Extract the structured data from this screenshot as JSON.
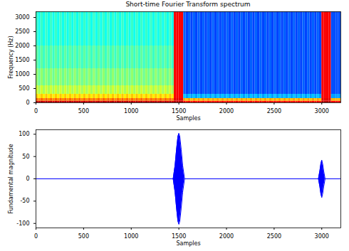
{
  "chart_data": [
    {
      "type": "heatmap",
      "title": "Short-time Fourier Transform spectrum",
      "x_label": "Samples",
      "y_label": "Frequency (Hz)",
      "xlim": [
        0,
        3200
      ],
      "ylim": [
        0,
        3200
      ],
      "xticks": [
        0,
        500,
        1000,
        1500,
        2000,
        2500,
        3000
      ],
      "yticks": [
        0,
        500,
        1000,
        1500,
        2000,
        2500,
        3000
      ],
      "grid": false,
      "color": "jet",
      "zlim": [
        0,
        100
      ],
      "x_edges": [
        0,
        25,
        50,
        75,
        100,
        125,
        150,
        175,
        200,
        225,
        250,
        275,
        300,
        325,
        350,
        375,
        400,
        425,
        450,
        475,
        500,
        525,
        550,
        575,
        600,
        625,
        650,
        675,
        700,
        725,
        750,
        775,
        800,
        825,
        850,
        875,
        900,
        925,
        950,
        975,
        1000,
        1025,
        1050,
        1075,
        1100,
        1125,
        1150,
        1175,
        1200,
        1225,
        1250,
        1275,
        1300,
        1325,
        1350,
        1375,
        1400,
        1425,
        1450,
        1475,
        1500,
        1525,
        1550,
        1575,
        1600,
        1625,
        1650,
        1675,
        1700,
        1725,
        1750,
        1775,
        1800,
        1825,
        1850,
        1875,
        1900,
        1925,
        1950,
        1975,
        2000,
        2025,
        2050,
        2075,
        2100,
        2125,
        2150,
        2175,
        2200,
        2225,
        2250,
        2275,
        2300,
        2325,
        2350,
        2375,
        2400,
        2425,
        2450,
        2475,
        2500,
        2525,
        2550,
        2575,
        2600,
        2625,
        2650,
        2675,
        2700,
        2725,
        2750,
        2775,
        2800,
        2825,
        2850,
        2875,
        2900,
        2925,
        2950,
        2975,
        3000,
        3025,
        3050,
        3075,
        3100,
        3125,
        3150,
        3175,
        3200
      ],
      "y_edges": [
        0,
        60,
        150,
        300,
        600,
        1200,
        2000,
        3200
      ],
      "cells": [
        [
          95,
          92,
          95,
          92,
          95,
          92,
          95,
          92,
          95,
          92,
          95,
          92,
          95,
          92,
          95,
          92,
          95,
          92,
          95,
          92,
          95,
          92,
          95,
          92,
          95,
          92,
          95,
          92,
          95,
          92,
          95,
          92,
          95,
          92,
          95,
          92,
          95,
          92,
          95,
          92,
          95,
          92,
          95,
          92,
          95,
          92,
          95,
          92,
          95,
          92,
          95,
          92,
          95,
          92,
          95,
          92,
          95,
          92,
          95,
          95,
          95,
          95,
          88,
          85,
          88,
          85,
          88,
          85,
          88,
          85,
          88,
          85,
          88,
          85,
          88,
          85,
          88,
          85,
          88,
          85,
          88,
          85,
          88,
          85,
          88,
          85,
          88,
          85,
          88,
          85,
          88,
          85,
          88,
          85,
          88,
          85,
          88,
          85,
          88,
          85,
          88,
          85,
          88,
          85,
          88,
          85,
          88,
          85,
          88,
          85,
          88,
          85,
          88,
          85,
          88,
          85,
          88,
          85,
          88,
          85,
          95,
          95,
          95,
          95,
          88,
          88,
          88,
          88
        ],
        [
          78,
          74,
          78,
          74,
          78,
          74,
          78,
          74,
          78,
          74,
          78,
          74,
          78,
          74,
          78,
          74,
          78,
          74,
          78,
          74,
          78,
          74,
          78,
          74,
          78,
          74,
          78,
          74,
          78,
          74,
          78,
          74,
          78,
          74,
          78,
          74,
          78,
          74,
          78,
          74,
          78,
          74,
          78,
          74,
          78,
          74,
          78,
          74,
          78,
          74,
          78,
          74,
          78,
          74,
          78,
          74,
          78,
          74,
          90,
          90,
          90,
          90,
          72,
          68,
          72,
          68,
          72,
          68,
          72,
          68,
          72,
          68,
          72,
          68,
          72,
          68,
          72,
          68,
          72,
          68,
          72,
          68,
          72,
          68,
          72,
          68,
          72,
          68,
          72,
          68,
          72,
          68,
          72,
          68,
          72,
          68,
          72,
          68,
          72,
          68,
          72,
          68,
          72,
          68,
          72,
          68,
          72,
          68,
          72,
          68,
          72,
          68,
          72,
          68,
          72,
          68,
          72,
          68,
          72,
          68,
          90,
          90,
          90,
          90,
          70,
          70,
          70,
          70
        ],
        [
          68,
          64,
          68,
          64,
          68,
          64,
          68,
          64,
          68,
          64,
          68,
          64,
          68,
          64,
          68,
          64,
          68,
          64,
          68,
          64,
          68,
          64,
          68,
          64,
          68,
          64,
          68,
          64,
          68,
          64,
          68,
          64,
          68,
          64,
          68,
          64,
          68,
          64,
          68,
          64,
          68,
          64,
          68,
          64,
          68,
          64,
          68,
          64,
          68,
          64,
          68,
          64,
          68,
          64,
          68,
          64,
          68,
          64,
          88,
          88,
          88,
          88,
          32,
          28,
          32,
          28,
          32,
          28,
          32,
          28,
          32,
          28,
          32,
          28,
          32,
          28,
          32,
          28,
          32,
          28,
          32,
          28,
          32,
          28,
          32,
          28,
          32,
          28,
          32,
          28,
          32,
          28,
          32,
          28,
          32,
          28,
          32,
          28,
          32,
          28,
          32,
          28,
          32,
          28,
          32,
          28,
          32,
          28,
          32,
          28,
          32,
          28,
          32,
          28,
          32,
          28,
          32,
          28,
          32,
          28,
          88,
          88,
          88,
          88,
          28,
          28,
          28,
          28
        ],
        [
          58,
          54,
          58,
          54,
          58,
          54,
          58,
          54,
          58,
          54,
          58,
          54,
          58,
          54,
          58,
          54,
          58,
          54,
          58,
          54,
          58,
          54,
          58,
          54,
          58,
          54,
          58,
          54,
          58,
          54,
          58,
          54,
          58,
          54,
          58,
          54,
          58,
          54,
          58,
          54,
          58,
          54,
          58,
          54,
          58,
          54,
          58,
          54,
          58,
          54,
          58,
          54,
          58,
          54,
          58,
          54,
          58,
          54,
          88,
          88,
          88,
          88,
          22,
          19,
          22,
          19,
          22,
          19,
          22,
          19,
          22,
          19,
          22,
          19,
          22,
          19,
          22,
          19,
          22,
          19,
          22,
          19,
          22,
          19,
          22,
          19,
          22,
          19,
          22,
          19,
          22,
          19,
          22,
          19,
          22,
          19,
          22,
          19,
          22,
          19,
          22,
          19,
          22,
          19,
          22,
          19,
          22,
          19,
          22,
          19,
          22,
          19,
          22,
          19,
          22,
          19,
          22,
          19,
          22,
          19,
          88,
          88,
          88,
          88,
          20,
          20,
          20,
          20
        ],
        [
          52,
          48,
          52,
          48,
          52,
          48,
          52,
          48,
          52,
          48,
          52,
          48,
          52,
          48,
          52,
          48,
          52,
          48,
          52,
          48,
          52,
          48,
          52,
          48,
          52,
          48,
          52,
          48,
          52,
          48,
          52,
          48,
          52,
          48,
          52,
          48,
          52,
          48,
          52,
          48,
          52,
          48,
          52,
          48,
          52,
          48,
          52,
          48,
          52,
          48,
          52,
          48,
          52,
          48,
          52,
          48,
          52,
          48,
          88,
          88,
          88,
          88,
          22,
          19,
          22,
          19,
          22,
          19,
          22,
          19,
          22,
          19,
          22,
          19,
          22,
          19,
          22,
          19,
          22,
          19,
          22,
          19,
          22,
          19,
          22,
          19,
          22,
          19,
          22,
          19,
          22,
          19,
          22,
          19,
          22,
          19,
          22,
          19,
          22,
          19,
          22,
          19,
          22,
          19,
          22,
          19,
          22,
          19,
          22,
          19,
          22,
          19,
          22,
          19,
          22,
          19,
          22,
          19,
          22,
          19,
          88,
          88,
          88,
          88,
          20,
          20,
          20,
          20
        ],
        [
          47,
          43,
          47,
          43,
          47,
          43,
          47,
          43,
          47,
          43,
          47,
          43,
          47,
          43,
          47,
          43,
          47,
          43,
          47,
          43,
          47,
          43,
          47,
          43,
          47,
          43,
          47,
          43,
          47,
          43,
          47,
          43,
          47,
          43,
          47,
          43,
          47,
          43,
          47,
          43,
          47,
          43,
          47,
          43,
          47,
          43,
          47,
          43,
          47,
          43,
          47,
          43,
          47,
          43,
          47,
          43,
          47,
          43,
          88,
          88,
          88,
          88,
          22,
          19,
          22,
          19,
          22,
          19,
          22,
          19,
          22,
          19,
          22,
          19,
          22,
          19,
          22,
          19,
          22,
          19,
          22,
          19,
          22,
          19,
          22,
          19,
          22,
          19,
          22,
          19,
          22,
          19,
          22,
          19,
          22,
          19,
          22,
          19,
          22,
          19,
          22,
          19,
          22,
          19,
          22,
          19,
          22,
          19,
          22,
          19,
          22,
          19,
          22,
          19,
          22,
          19,
          22,
          19,
          22,
          19,
          88,
          88,
          88,
          88,
          20,
          20,
          20,
          20
        ],
        [
          43,
          39,
          43,
          39,
          43,
          39,
          43,
          39,
          43,
          39,
          43,
          39,
          43,
          39,
          43,
          39,
          43,
          39,
          43,
          39,
          43,
          39,
          43,
          39,
          43,
          39,
          43,
          39,
          43,
          39,
          43,
          39,
          43,
          39,
          43,
          39,
          43,
          39,
          43,
          39,
          43,
          39,
          43,
          39,
          43,
          39,
          43,
          39,
          43,
          39,
          43,
          39,
          43,
          39,
          43,
          39,
          43,
          39,
          88,
          88,
          88,
          88,
          22,
          19,
          22,
          19,
          22,
          19,
          22,
          19,
          22,
          19,
          22,
          19,
          22,
          19,
          22,
          19,
          22,
          19,
          22,
          19,
          22,
          19,
          22,
          19,
          22,
          19,
          22,
          19,
          22,
          19,
          22,
          19,
          22,
          19,
          22,
          19,
          22,
          19,
          22,
          19,
          22,
          19,
          22,
          19,
          22,
          19,
          22,
          19,
          22,
          19,
          22,
          19,
          22,
          19,
          22,
          19,
          22,
          19,
          88,
          88,
          88,
          88,
          20,
          20,
          20,
          20
        ]
      ]
    },
    {
      "type": "area",
      "x_label": "Samples",
      "y_label": "Fundamental magnitude",
      "xlim": [
        0,
        3200
      ],
      "ylim": [
        -110,
        110
      ],
      "xticks": [
        0,
        500,
        1000,
        1500,
        2000,
        2500,
        3000
      ],
      "yticks": [
        -100,
        -50,
        0,
        50,
        100
      ],
      "grid": false,
      "color": "#0000ff",
      "x": [
        0,
        1440,
        1460,
        1475,
        1490,
        1500,
        1510,
        1525,
        1540,
        1560,
        2965,
        2980,
        2990,
        3000,
        3010,
        3020,
        3035,
        3200
      ],
      "upper": [
        0,
        0,
        30,
        65,
        95,
        102,
        95,
        65,
        30,
        0,
        0,
        18,
        33,
        42,
        33,
        18,
        0,
        0
      ],
      "lower": [
        0,
        0,
        -30,
        -65,
        -95,
        -102,
        -95,
        -65,
        -30,
        0,
        0,
        -18,
        -33,
        -42,
        -33,
        -18,
        0,
        0
      ]
    }
  ]
}
